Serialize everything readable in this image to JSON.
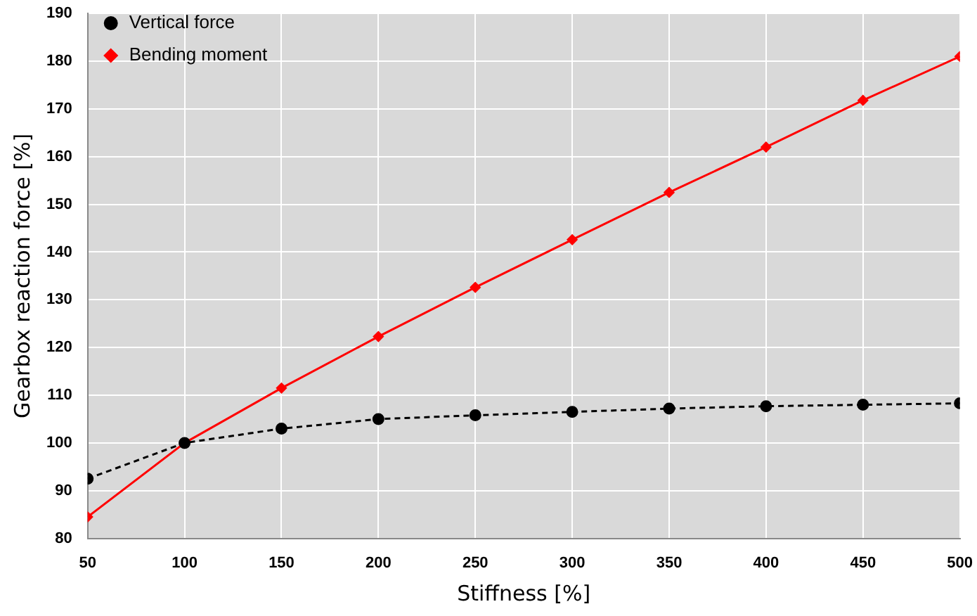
{
  "chart_data": {
    "type": "line",
    "xlabel": "Stiffness [%]",
    "ylabel": "Gearbox reaction force [%]",
    "x": [
      50,
      100,
      150,
      200,
      250,
      300,
      350,
      400,
      450,
      500
    ],
    "series": [
      {
        "name": "Vertical force",
        "color": "#000000",
        "marker": "circle",
        "line_style": "dashed",
        "values": [
          92.5,
          100,
          103,
          105,
          105.8,
          106.5,
          107.2,
          107.7,
          108,
          108.3
        ]
      },
      {
        "name": "Bending moment",
        "color": "#ff0000",
        "marker": "diamond",
        "line_style": "solid",
        "values": [
          84.5,
          100,
          111.5,
          122.3,
          132.6,
          142.6,
          152.5,
          162,
          171.8,
          181
        ]
      }
    ],
    "xlim": [
      50,
      500
    ],
    "xticks": [
      50,
      100,
      150,
      200,
      250,
      300,
      350,
      400,
      450,
      500
    ],
    "ylim": [
      80,
      190
    ],
    "yticks": [
      80,
      90,
      100,
      110,
      120,
      130,
      140,
      150,
      160,
      170,
      180,
      190
    ],
    "grid": true,
    "legend": "top left"
  }
}
